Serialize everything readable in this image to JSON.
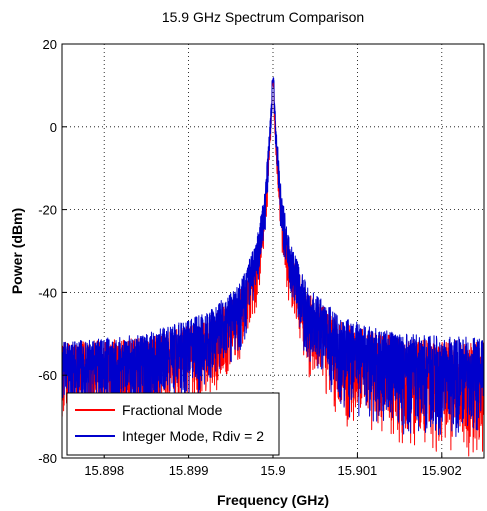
{
  "chart_data": {
    "type": "line",
    "title": "15.9 GHz Spectrum Comparison",
    "xlabel": "Frequency (GHz)",
    "ylabel": "Power (dBm)",
    "xlim": [
      15.8975,
      15.9025
    ],
    "ylim": [
      -80,
      20
    ],
    "xticks": [
      "15.898",
      "15.899",
      "15.9",
      "15.901",
      "15.902"
    ],
    "xtick_values": [
      15.898,
      15.899,
      15.9,
      15.901,
      15.902
    ],
    "yticks": [
      "20",
      "0",
      "-20",
      "-40",
      "-60",
      "-80"
    ],
    "ytick_values": [
      20,
      0,
      -20,
      -40,
      -60,
      -80
    ],
    "grid": "dotted",
    "legend_position": "bottom-left",
    "center_frequency": 15.9,
    "series": [
      {
        "name": "Fractional Mode",
        "color": "#ff0000",
        "peak": 11,
        "envelope_upper": [
          [
            15.8975,
            -52
          ],
          [
            15.8985,
            -51
          ],
          [
            15.8992,
            -47
          ],
          [
            15.8996,
            -40
          ],
          [
            15.8998,
            -30
          ],
          [
            15.8999,
            -18
          ],
          [
            15.89995,
            -5
          ],
          [
            15.9,
            11
          ],
          [
            15.90005,
            -5
          ],
          [
            15.9001,
            -18
          ],
          [
            15.9002,
            -30
          ],
          [
            15.9004,
            -40
          ],
          [
            15.9008,
            -47
          ],
          [
            15.9015,
            -51
          ],
          [
            15.9025,
            -52
          ]
        ],
        "envelope_lower": [
          [
            15.8975,
            -72
          ],
          [
            15.8985,
            -72
          ],
          [
            15.8992,
            -67
          ],
          [
            15.8996,
            -58
          ],
          [
            15.8998,
            -45
          ],
          [
            15.8999,
            -30
          ],
          [
            15.89995,
            -15
          ],
          [
            15.9,
            6
          ],
          [
            15.90005,
            -15
          ],
          [
            15.9001,
            -30
          ],
          [
            15.9002,
            -45
          ],
          [
            15.9004,
            -60
          ],
          [
            15.9008,
            -72
          ],
          [
            15.9015,
            -78
          ],
          [
            15.9025,
            -80
          ]
        ]
      },
      {
        "name": "Integer Mode, Rdiv = 2",
        "color": "#0000cc",
        "peak": 12,
        "envelope_upper": [
          [
            15.8975,
            -52
          ],
          [
            15.8985,
            -50
          ],
          [
            15.8992,
            -45
          ],
          [
            15.8996,
            -38
          ],
          [
            15.8998,
            -28
          ],
          [
            15.8999,
            -16
          ],
          [
            15.89995,
            -3
          ],
          [
            15.9,
            12
          ],
          [
            15.90005,
            -3
          ],
          [
            15.9001,
            -16
          ],
          [
            15.9002,
            -28
          ],
          [
            15.9004,
            -38
          ],
          [
            15.9008,
            -46
          ],
          [
            15.9015,
            -50
          ],
          [
            15.9025,
            -51
          ]
        ],
        "envelope_lower": [
          [
            15.8975,
            -70
          ],
          [
            15.8985,
            -70
          ],
          [
            15.8992,
            -65
          ],
          [
            15.8996,
            -56
          ],
          [
            15.8998,
            -43
          ],
          [
            15.8999,
            -28
          ],
          [
            15.89995,
            -13
          ],
          [
            15.9,
            7
          ],
          [
            15.90005,
            -13
          ],
          [
            15.9001,
            -28
          ],
          [
            15.9002,
            -43
          ],
          [
            15.9004,
            -58
          ],
          [
            15.9008,
            -70
          ],
          [
            15.9015,
            -76
          ],
          [
            15.9025,
            -78
          ]
        ]
      }
    ]
  }
}
